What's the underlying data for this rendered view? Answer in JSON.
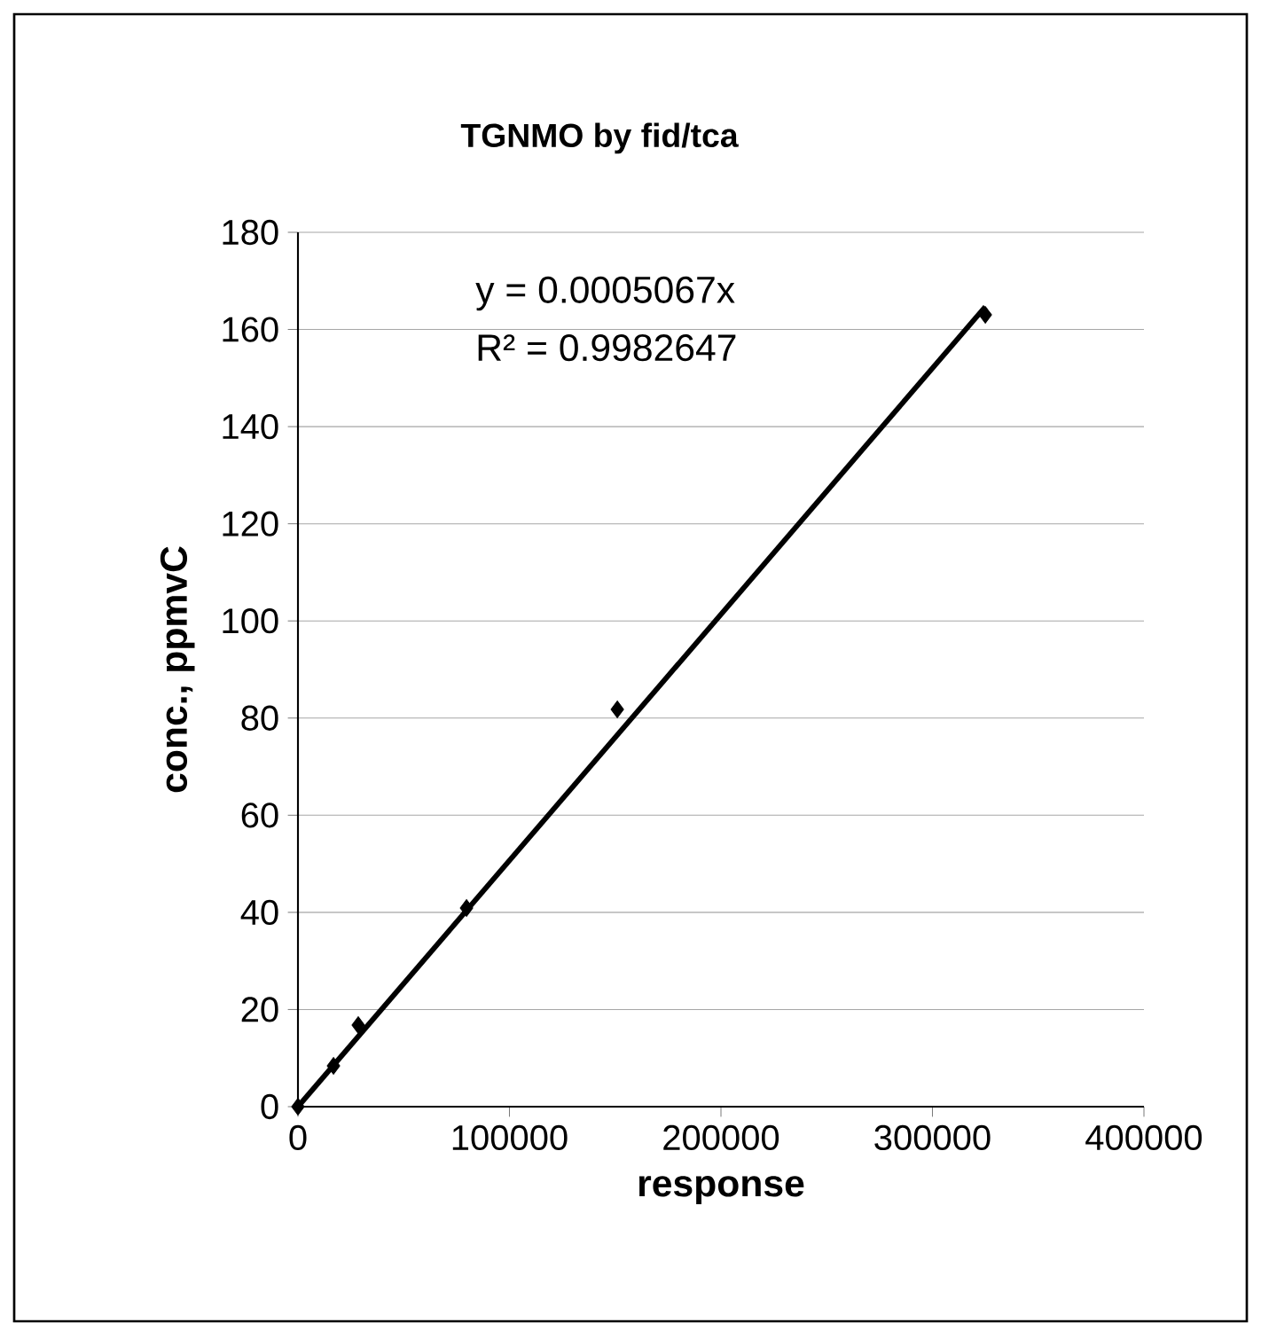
{
  "chart_data": {
    "type": "scatter",
    "title": "TGNMO by fid/tca",
    "xlabel": "response",
    "ylabel": "conc., ppmvC",
    "annotations": [
      "y = 0.0005067x",
      "R² = 0.9982647"
    ],
    "series": [
      {
        "color": "#000000",
        "marker": "diamond",
        "x": [
          0,
          16800,
          28500,
          79700,
          151000,
          325000
        ],
        "values": [
          0,
          8.4,
          16.8,
          40.9,
          81.8,
          163
        ]
      },
      {
        "type": "line",
        "color": "#000000",
        "marker": "none",
        "x": [
          0,
          325000
        ],
        "values": [
          0,
          164.7
        ]
      }
    ],
    "xlim": [
      0,
      400000
    ],
    "xticks": [
      0,
      100000,
      200000,
      300000,
      400000
    ],
    "ylim": [
      0,
      180
    ],
    "yticks": [
      0,
      20,
      40,
      60,
      80,
      100,
      120,
      140,
      160,
      180
    ],
    "grid": "y"
  }
}
